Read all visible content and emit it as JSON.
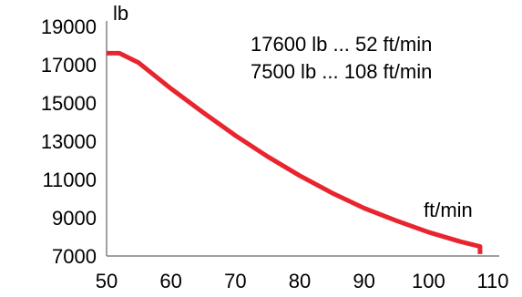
{
  "chart_data": {
    "type": "line",
    "ylabel": "lb",
    "xlabel": "ft/min",
    "xlim": [
      50,
      110
    ],
    "ylim": [
      7000,
      19000
    ],
    "x_ticks": [
      "50",
      "60",
      "70",
      "80",
      "90",
      "100",
      "110"
    ],
    "x_tick_values": [
      50,
      60,
      70,
      80,
      90,
      100,
      110
    ],
    "y_ticks": [
      "19000",
      "17000",
      "15000",
      "13000",
      "11000",
      "9000",
      "7000"
    ],
    "y_tick_values": [
      19000,
      17000,
      15000,
      13000,
      11000,
      9000,
      7000
    ],
    "grid": false,
    "annotations": [
      "17600 lb ... 52 ft/min",
      "7500 lb ... 108 ft/min"
    ],
    "series": [
      {
        "color": "#e8252f",
        "x": [
          50,
          52,
          55,
          60,
          65,
          70,
          75,
          80,
          85,
          90,
          95,
          100,
          105,
          108,
          108
        ],
        "y": [
          17600,
          17600,
          17100,
          15750,
          14500,
          13300,
          12200,
          11200,
          10300,
          9500,
          8850,
          8250,
          7750,
          7500,
          7100
        ]
      }
    ]
  }
}
